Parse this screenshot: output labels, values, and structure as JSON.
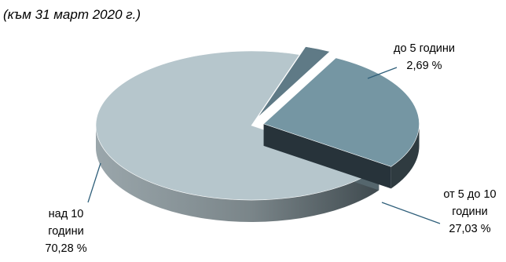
{
  "chart_data": {
    "type": "pie",
    "subtitle": "(към 31 март 2020 г.)",
    "slices": [
      {
        "label_lines": [
          "до 5 години",
          "2,69 %"
        ],
        "value": 2.69,
        "color": "#5f7a86"
      },
      {
        "label_lines": [
          "от 5 до 10",
          "години",
          "27,03 %"
        ],
        "value": 27.03,
        "color": "#7596a3"
      },
      {
        "label_lines": [
          "над 10",
          "години",
          "70,28 %"
        ],
        "value": 70.28,
        "color": "#b6c6cc"
      }
    ],
    "style": "3d-exploded"
  }
}
